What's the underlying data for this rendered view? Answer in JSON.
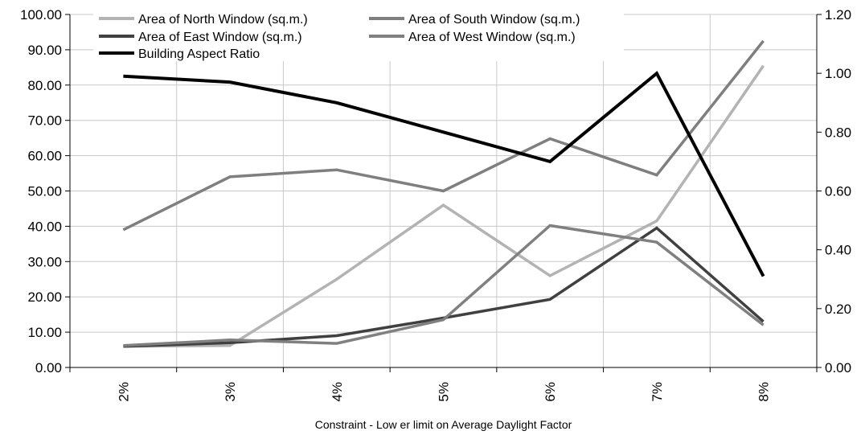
{
  "chart_data": {
    "type": "line",
    "title": "",
    "xlabel": "Constraint - Low er limit on Average Daylight Factor",
    "ylabel": "",
    "y2label": "",
    "categories": [
      "2%",
      "3%",
      "4%",
      "5%",
      "6%",
      "7%",
      "8%"
    ],
    "ylim": [
      0,
      100
    ],
    "y2lim": [
      0,
      1.2
    ],
    "yticks": [
      "0.00",
      "10.00",
      "20.00",
      "30.00",
      "40.00",
      "50.00",
      "60.00",
      "70.00",
      "80.00",
      "90.00",
      "100.00"
    ],
    "y2ticks": [
      "0.00",
      "0.20",
      "0.40",
      "0.60",
      "0.80",
      "1.00",
      "1.20"
    ],
    "grid": true,
    "legend_position": "top",
    "series": [
      {
        "name": "Area of North Window (sq.m.)",
        "axis": "left",
        "color": "#b3b3b3",
        "values": [
          6.0,
          6.2,
          25.0,
          46.0,
          26.0,
          41.5,
          85.5
        ]
      },
      {
        "name": "Area of South Window (sq.m.)",
        "axis": "left",
        "color": "#7f7f7f",
        "values": [
          39.0,
          54.0,
          56.0,
          50.0,
          64.8,
          54.5,
          92.5
        ]
      },
      {
        "name": "Area of East Window (sq.m.)",
        "axis": "left",
        "color": "#404040",
        "values": [
          6.0,
          7.0,
          9.0,
          14.0,
          19.3,
          39.5,
          13.0
        ]
      },
      {
        "name": "Area of West Window (sq.m.)",
        "axis": "left",
        "color": "#808080",
        "values": [
          6.2,
          7.8,
          6.8,
          13.5,
          40.2,
          35.5,
          12.0
        ]
      },
      {
        "name": "Building Aspect Ratio",
        "axis": "right",
        "color": "#000000",
        "values": [
          0.99,
          0.97,
          0.9,
          0.8,
          0.7,
          1.0,
          0.31
        ]
      }
    ]
  }
}
